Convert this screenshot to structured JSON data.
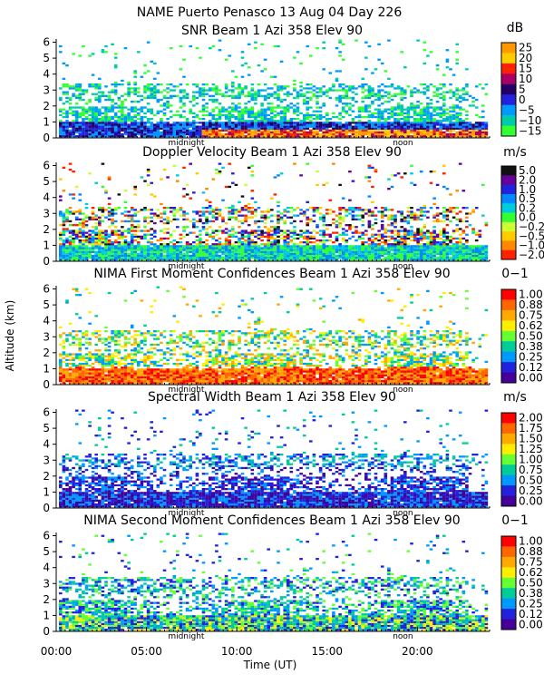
{
  "figure": {
    "title": "NAME Puerto Penasco  13 Aug 04 Day 226",
    "ylabel": "Altitude (km)",
    "xlabel": "Time (UT)",
    "x_ticks": [
      "00:00",
      "05:00",
      "10:00",
      "15:00",
      "20:00"
    ],
    "x_tick_hours": [
      0,
      5,
      10,
      15,
      20
    ],
    "x_range": [
      0,
      24
    ],
    "y_ticks": [
      "0",
      "1",
      "2",
      "3",
      "4",
      "5",
      "6"
    ],
    "markers": [
      {
        "label": "midnight",
        "hour": 7.2
      },
      {
        "label": "noon",
        "hour": 19.2
      }
    ]
  },
  "chart_data": [
    {
      "type": "heatmap",
      "title": "SNR Beam 1 Azi 358 Elev 90",
      "unit": "dB",
      "ylim": [
        0,
        6.2
      ],
      "colorbar": {
        "labels": [
          "25",
          "20",
          "15",
          "10",
          "5",
          "0",
          "−5",
          "−10",
          "−15"
        ],
        "colors": [
          "#ff9900",
          "#ffcc00",
          "#ff2200",
          "#aa0066",
          "#220066",
          "#2222dd",
          "#0099ff",
          "#00ccaa",
          "#33ff33"
        ]
      }
    },
    {
      "type": "heatmap",
      "title": "Doppler Velocity Beam 1 Azi 358 Elev 90",
      "unit": "m/s",
      "ylim": [
        0,
        6.2
      ],
      "colorbar": {
        "labels": [
          "5.0",
          "2.0",
          "1.0",
          "0.5",
          "0.2",
          "0.0",
          "−0.2",
          "−0.5",
          "−1.0",
          "−2.0"
        ],
        "colors": [
          "#111111",
          "#660099",
          "#2222dd",
          "#0088ff",
          "#00ccdd",
          "#33ff33",
          "#ccff33",
          "#ffcc00",
          "#ff8800",
          "#ff2200"
        ]
      }
    },
    {
      "type": "heatmap",
      "title": "NIMA First Moment Confidences Beam 1 Azi 358 Elev 90",
      "unit": "0−1",
      "ylim": [
        0,
        6.2
      ],
      "colorbar": {
        "labels": [
          "1.00",
          "0.88",
          "0.75",
          "0.62",
          "0.50",
          "0.38",
          "0.25",
          "0.12",
          "0.00"
        ],
        "colors": [
          "#ff0000",
          "#ff6600",
          "#ffaa00",
          "#ffee00",
          "#66ff33",
          "#00cc99",
          "#0099ff",
          "#2222dd",
          "#440099"
        ]
      }
    },
    {
      "type": "heatmap",
      "title": "Spectral Width Beam 1 Azi 358 Elev 90",
      "unit": "m/s",
      "ylim": [
        0,
        6.2
      ],
      "colorbar": {
        "labels": [
          "2.00",
          "1.75",
          "1.50",
          "1.25",
          "1.00",
          "0.75",
          "0.50",
          "0.25",
          "0.00"
        ],
        "colors": [
          "#ff0000",
          "#ff6600",
          "#ffaa00",
          "#ffee00",
          "#66ff33",
          "#00cc99",
          "#0099ff",
          "#2222dd",
          "#440099"
        ]
      }
    },
    {
      "type": "heatmap",
      "title": "NIMA Second Moment Confidences Beam 1 Azi 358 Elev 90",
      "unit": "0−1",
      "ylim": [
        0,
        6.2
      ],
      "colorbar": {
        "labels": [
          "1.00",
          "0.88",
          "0.75",
          "0.62",
          "0.50",
          "0.38",
          "0.25",
          "0.12",
          "0.00"
        ],
        "colors": [
          "#ff0000",
          "#ff6600",
          "#ffaa00",
          "#ffee00",
          "#66ff33",
          "#00cc99",
          "#0099ff",
          "#2222dd",
          "#440099"
        ]
      }
    }
  ]
}
